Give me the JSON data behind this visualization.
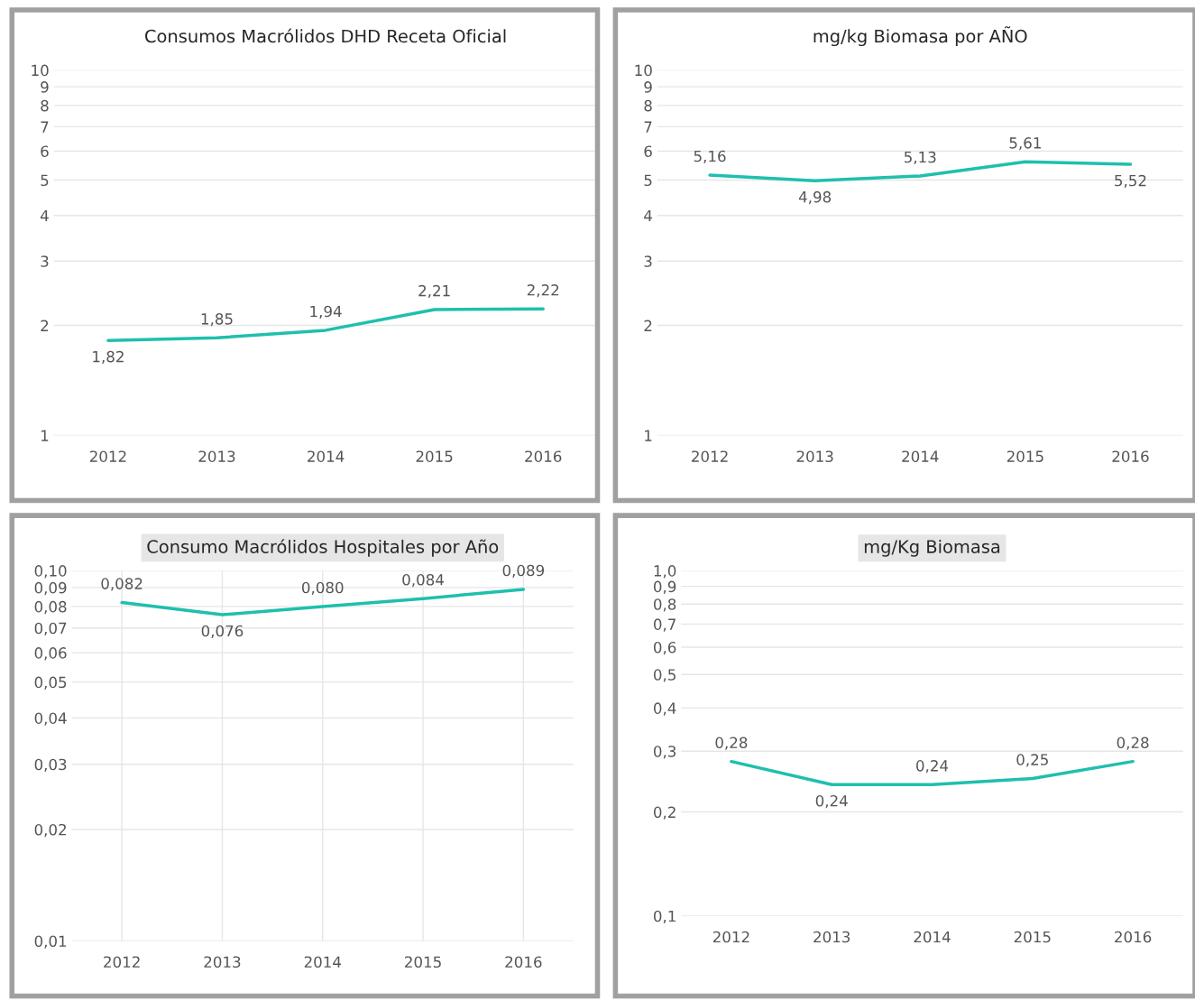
{
  "chart_data": [
    {
      "type": "line",
      "title": "Consumos Macrólidos DHD Receta Oficial",
      "categories": [
        "2012",
        "2013",
        "2014",
        "2015",
        "2016"
      ],
      "series": [
        {
          "color": "#1fbfae",
          "values": [
            1.82,
            1.85,
            1.94,
            2.21,
            2.22
          ],
          "value_labels": [
            "1,82",
            "1,85",
            "1,94",
            "2,21",
            "2,22"
          ]
        }
      ],
      "log": "y",
      "ylim": [
        1,
        10
      ],
      "yticks": [
        1,
        2,
        3,
        4,
        5,
        6,
        7,
        8,
        9,
        10
      ],
      "grid": "y",
      "marker": "none",
      "line_style": "solid"
    },
    {
      "type": "line",
      "title": "mg/kg Biomasa por AÑO",
      "categories": [
        "2012",
        "2013",
        "2014",
        "2015",
        "2016"
      ],
      "series": [
        {
          "color": "#1fbfae",
          "values": [
            5.16,
            4.98,
            5.13,
            5.61,
            5.52
          ],
          "value_labels": [
            "5,16",
            "4,98",
            "5,13",
            "5,61",
            "5,52"
          ]
        }
      ],
      "log": "y",
      "ylim": [
        1,
        10
      ],
      "yticks": [
        1,
        2,
        3,
        4,
        5,
        6,
        7,
        8,
        9,
        10
      ],
      "grid": "y",
      "marker": "none",
      "line_style": "solid"
    },
    {
      "type": "line",
      "title": "Consumo Macrólidos Hospitales por Año",
      "categories": [
        "2012",
        "2013",
        "2014",
        "2015",
        "2016"
      ],
      "series": [
        {
          "color": "#1fbfae",
          "values": [
            0.082,
            0.076,
            0.08,
            0.084,
            0.089
          ],
          "value_labels": [
            "0,082",
            "0,076",
            "0,080",
            "0,084",
            "0,089"
          ]
        }
      ],
      "log": "y",
      "ylim": [
        0.01,
        0.1
      ],
      "yticks": [
        {
          "value": 0.01,
          "label": "0,01"
        },
        {
          "value": 0.02,
          "label": "0,02"
        },
        {
          "value": 0.03,
          "label": "0,03"
        },
        {
          "value": 0.04,
          "label": "0,04"
        },
        {
          "value": 0.05,
          "label": "0,05"
        },
        {
          "value": 0.06,
          "label": "0,06"
        },
        {
          "value": 0.07,
          "label": "0,07"
        },
        {
          "value": 0.08,
          "label": "0,08"
        },
        {
          "value": 0.09,
          "label": "0,09"
        },
        {
          "value": 0.1,
          "label": "0,10"
        }
      ],
      "grid": true,
      "marker": "none",
      "line_style": "solid"
    },
    {
      "type": "line",
      "title": "mg/Kg Biomasa",
      "categories": [
        "2012",
        "2013",
        "2014",
        "2015",
        "2016"
      ],
      "series": [
        {
          "color": "#1fbfae",
          "values": [
            0.28,
            0.24,
            0.24,
            0.25,
            0.28
          ],
          "value_labels": [
            "0,28",
            "0,24",
            "0,24",
            "0,25",
            "0,28"
          ]
        }
      ],
      "log": "y",
      "ylim": [
        0.1,
        1.0
      ],
      "yticks": [
        {
          "value": 0.1,
          "label": "0,1"
        },
        {
          "value": 0.2,
          "label": "0,2"
        },
        {
          "value": 0.3,
          "label": "0,3"
        },
        {
          "value": 0.4,
          "label": "0,4"
        },
        {
          "value": 0.5,
          "label": "0,5"
        },
        {
          "value": 0.6,
          "label": "0,6"
        },
        {
          "value": 0.7,
          "label": "0,7"
        },
        {
          "value": 0.8,
          "label": "0,8"
        },
        {
          "value": 0.9,
          "label": "0,9"
        },
        {
          "value": 1.0,
          "label": "1,0"
        }
      ],
      "grid": "y",
      "marker": "none",
      "line_style": "solid"
    }
  ]
}
